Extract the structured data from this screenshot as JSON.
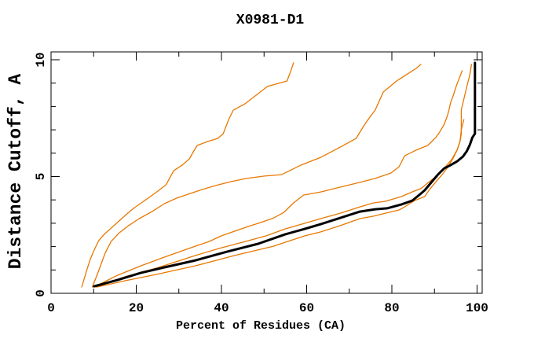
{
  "chart_data": {
    "type": "line",
    "title": "X0981-D1",
    "xlabel": "Percent of Residues (CA)",
    "ylabel": "Distance Cutoff, A",
    "xlim": [
      0,
      101.2
    ],
    "ylim": [
      0,
      10.34
    ],
    "x_major_ticks": [
      0,
      20,
      40,
      60,
      80,
      100
    ],
    "x_minor_ticks": [
      10,
      30,
      50,
      70,
      90
    ],
    "x_tick_labels": [
      "0",
      "20",
      "40",
      "60",
      "80",
      "100"
    ],
    "y_major_ticks": [
      0,
      5,
      10
    ],
    "y_minor_ticks": [
      1,
      2,
      3,
      4,
      6,
      7,
      8,
      9
    ],
    "y_tick_labels": [
      "0",
      "5",
      "10"
    ],
    "grid": false,
    "legend": "none",
    "colors": {
      "orange": "#e87800",
      "black": "#000000"
    },
    "series": [
      {
        "name": "orange-1",
        "color": "orange",
        "width": 1.3,
        "points": [
          [
            7.2,
            0.27
          ],
          [
            8.3,
            0.94
          ],
          [
            9.2,
            1.45
          ],
          [
            10.1,
            1.85
          ],
          [
            11.2,
            2.26
          ],
          [
            12.5,
            2.53
          ],
          [
            14.1,
            2.79
          ],
          [
            16.0,
            3.1
          ],
          [
            17.8,
            3.4
          ],
          [
            19.6,
            3.67
          ],
          [
            21.5,
            3.91
          ],
          [
            23.3,
            4.14
          ],
          [
            25.1,
            4.38
          ],
          [
            27.0,
            4.65
          ],
          [
            28.8,
            5.25
          ],
          [
            30.8,
            5.49
          ],
          [
            32.5,
            5.76
          ],
          [
            33.4,
            6.06
          ],
          [
            34.3,
            6.33
          ],
          [
            36.7,
            6.5
          ],
          [
            39.1,
            6.63
          ],
          [
            40.4,
            6.83
          ],
          [
            41.7,
            7.44
          ],
          [
            42.8,
            7.85
          ],
          [
            45.5,
            8.11
          ],
          [
            47.7,
            8.42
          ],
          [
            50.8,
            8.86
          ],
          [
            55.4,
            9.09
          ],
          [
            56.3,
            9.53
          ],
          [
            56.9,
            9.87
          ]
        ]
      },
      {
        "name": "orange-2",
        "color": "orange",
        "width": 1.3,
        "points": [
          [
            9.7,
            0.27
          ],
          [
            11.2,
            0.98
          ],
          [
            12.7,
            1.72
          ],
          [
            14.1,
            2.22
          ],
          [
            16.0,
            2.59
          ],
          [
            18.2,
            2.9
          ],
          [
            20.7,
            3.2
          ],
          [
            23.7,
            3.5
          ],
          [
            26.6,
            3.84
          ],
          [
            29.4,
            4.07
          ],
          [
            32.1,
            4.24
          ],
          [
            35.4,
            4.44
          ],
          [
            38.5,
            4.61
          ],
          [
            42.2,
            4.78
          ],
          [
            45.9,
            4.92
          ],
          [
            50.1,
            5.02
          ],
          [
            54.1,
            5.08
          ],
          [
            58.7,
            5.49
          ],
          [
            63.3,
            5.82
          ],
          [
            67.9,
            6.26
          ],
          [
            71.6,
            6.63
          ],
          [
            73.4,
            7.17
          ],
          [
            74.3,
            7.41
          ],
          [
            76.1,
            7.85
          ],
          [
            78.0,
            8.62
          ],
          [
            81.1,
            9.09
          ],
          [
            84.0,
            9.43
          ],
          [
            85.7,
            9.63
          ],
          [
            86.8,
            9.8
          ]
        ]
      },
      {
        "name": "orange-3",
        "color": "orange",
        "width": 1.3,
        "points": [
          [
            10.1,
            0.27
          ],
          [
            15.6,
            0.77
          ],
          [
            21.1,
            1.18
          ],
          [
            26.6,
            1.55
          ],
          [
            33.9,
            2.02
          ],
          [
            37.1,
            2.22
          ],
          [
            40.0,
            2.46
          ],
          [
            43.1,
            2.66
          ],
          [
            46.2,
            2.86
          ],
          [
            49.2,
            3.03
          ],
          [
            52.3,
            3.23
          ],
          [
            54.7,
            3.47
          ],
          [
            56.9,
            3.87
          ],
          [
            59.3,
            4.21
          ],
          [
            63.3,
            4.34
          ],
          [
            67.0,
            4.51
          ],
          [
            72.5,
            4.75
          ],
          [
            76.1,
            4.92
          ],
          [
            79.8,
            5.15
          ],
          [
            81.7,
            5.42
          ],
          [
            83.0,
            5.89
          ],
          [
            85.7,
            6.13
          ],
          [
            88.4,
            6.33
          ],
          [
            90.3,
            6.67
          ],
          [
            91.2,
            6.9
          ],
          [
            92.3,
            7.24
          ],
          [
            93.0,
            7.58
          ],
          [
            93.4,
            7.85
          ],
          [
            93.8,
            8.18
          ],
          [
            94.5,
            8.52
          ],
          [
            95.2,
            8.92
          ],
          [
            96.0,
            9.29
          ],
          [
            96.5,
            9.53
          ]
        ]
      },
      {
        "name": "orange-4",
        "color": "orange",
        "width": 1.3,
        "points": [
          [
            10.5,
            0.27
          ],
          [
            17.4,
            0.71
          ],
          [
            24.8,
            1.08
          ],
          [
            33.9,
            1.62
          ],
          [
            39.4,
            1.92
          ],
          [
            45.0,
            2.19
          ],
          [
            50.5,
            2.46
          ],
          [
            55.0,
            2.76
          ],
          [
            59.6,
            3.0
          ],
          [
            63.3,
            3.2
          ],
          [
            67.9,
            3.43
          ],
          [
            72.5,
            3.7
          ],
          [
            75.6,
            3.87
          ],
          [
            78.5,
            3.94
          ],
          [
            82.2,
            4.14
          ],
          [
            85.3,
            4.38
          ],
          [
            86.8,
            4.48
          ],
          [
            88.6,
            4.75
          ],
          [
            90.5,
            5.02
          ],
          [
            92.1,
            5.32
          ],
          [
            94.0,
            5.72
          ],
          [
            95.4,
            6.16
          ],
          [
            96.1,
            6.57
          ],
          [
            96.3,
            6.84
          ],
          [
            96.3,
            7.85
          ],
          [
            96.9,
            8.32
          ],
          [
            97.6,
            8.86
          ],
          [
            98.3,
            9.36
          ],
          [
            98.7,
            9.8
          ]
        ]
      },
      {
        "name": "orange-5",
        "color": "orange",
        "width": 1.3,
        "points": [
          [
            10.8,
            0.27
          ],
          [
            17.4,
            0.54
          ],
          [
            24.8,
            0.81
          ],
          [
            33.9,
            1.18
          ],
          [
            43.1,
            1.62
          ],
          [
            52.3,
            2.02
          ],
          [
            55.0,
            2.19
          ],
          [
            59.6,
            2.46
          ],
          [
            63.3,
            2.63
          ],
          [
            67.9,
            2.9
          ],
          [
            72.5,
            3.2
          ],
          [
            75.6,
            3.3
          ],
          [
            78.5,
            3.43
          ],
          [
            81.7,
            3.57
          ],
          [
            83.0,
            3.7
          ],
          [
            85.3,
            3.97
          ],
          [
            87.7,
            4.14
          ],
          [
            89.0,
            4.48
          ],
          [
            90.5,
            4.81
          ],
          [
            92.0,
            5.12
          ],
          [
            93.2,
            5.42
          ],
          [
            94.3,
            5.76
          ],
          [
            95.2,
            6.09
          ],
          [
            96.0,
            6.5
          ],
          [
            96.3,
            7.0
          ],
          [
            96.9,
            7.44
          ]
        ]
      },
      {
        "name": "black-bold",
        "color": "black",
        "width": 3,
        "points": [
          [
            10.1,
            0.3
          ],
          [
            15.6,
            0.57
          ],
          [
            21.1,
            0.88
          ],
          [
            26.6,
            1.11
          ],
          [
            33.9,
            1.41
          ],
          [
            41.3,
            1.78
          ],
          [
            48.6,
            2.12
          ],
          [
            55.0,
            2.53
          ],
          [
            59.6,
            2.76
          ],
          [
            63.3,
            2.96
          ],
          [
            67.9,
            3.23
          ],
          [
            72.5,
            3.5
          ],
          [
            76.1,
            3.6
          ],
          [
            78.9,
            3.64
          ],
          [
            82.2,
            3.8
          ],
          [
            84.8,
            3.97
          ],
          [
            86.6,
            4.24
          ],
          [
            87.7,
            4.41
          ],
          [
            89.4,
            4.78
          ],
          [
            90.8,
            5.08
          ],
          [
            92.3,
            5.35
          ],
          [
            93.8,
            5.49
          ],
          [
            95.4,
            5.66
          ],
          [
            96.7,
            5.86
          ],
          [
            97.6,
            6.09
          ],
          [
            98.3,
            6.36
          ],
          [
            98.9,
            6.67
          ],
          [
            99.5,
            6.84
          ],
          [
            99.5,
            9.87
          ]
        ]
      }
    ]
  }
}
